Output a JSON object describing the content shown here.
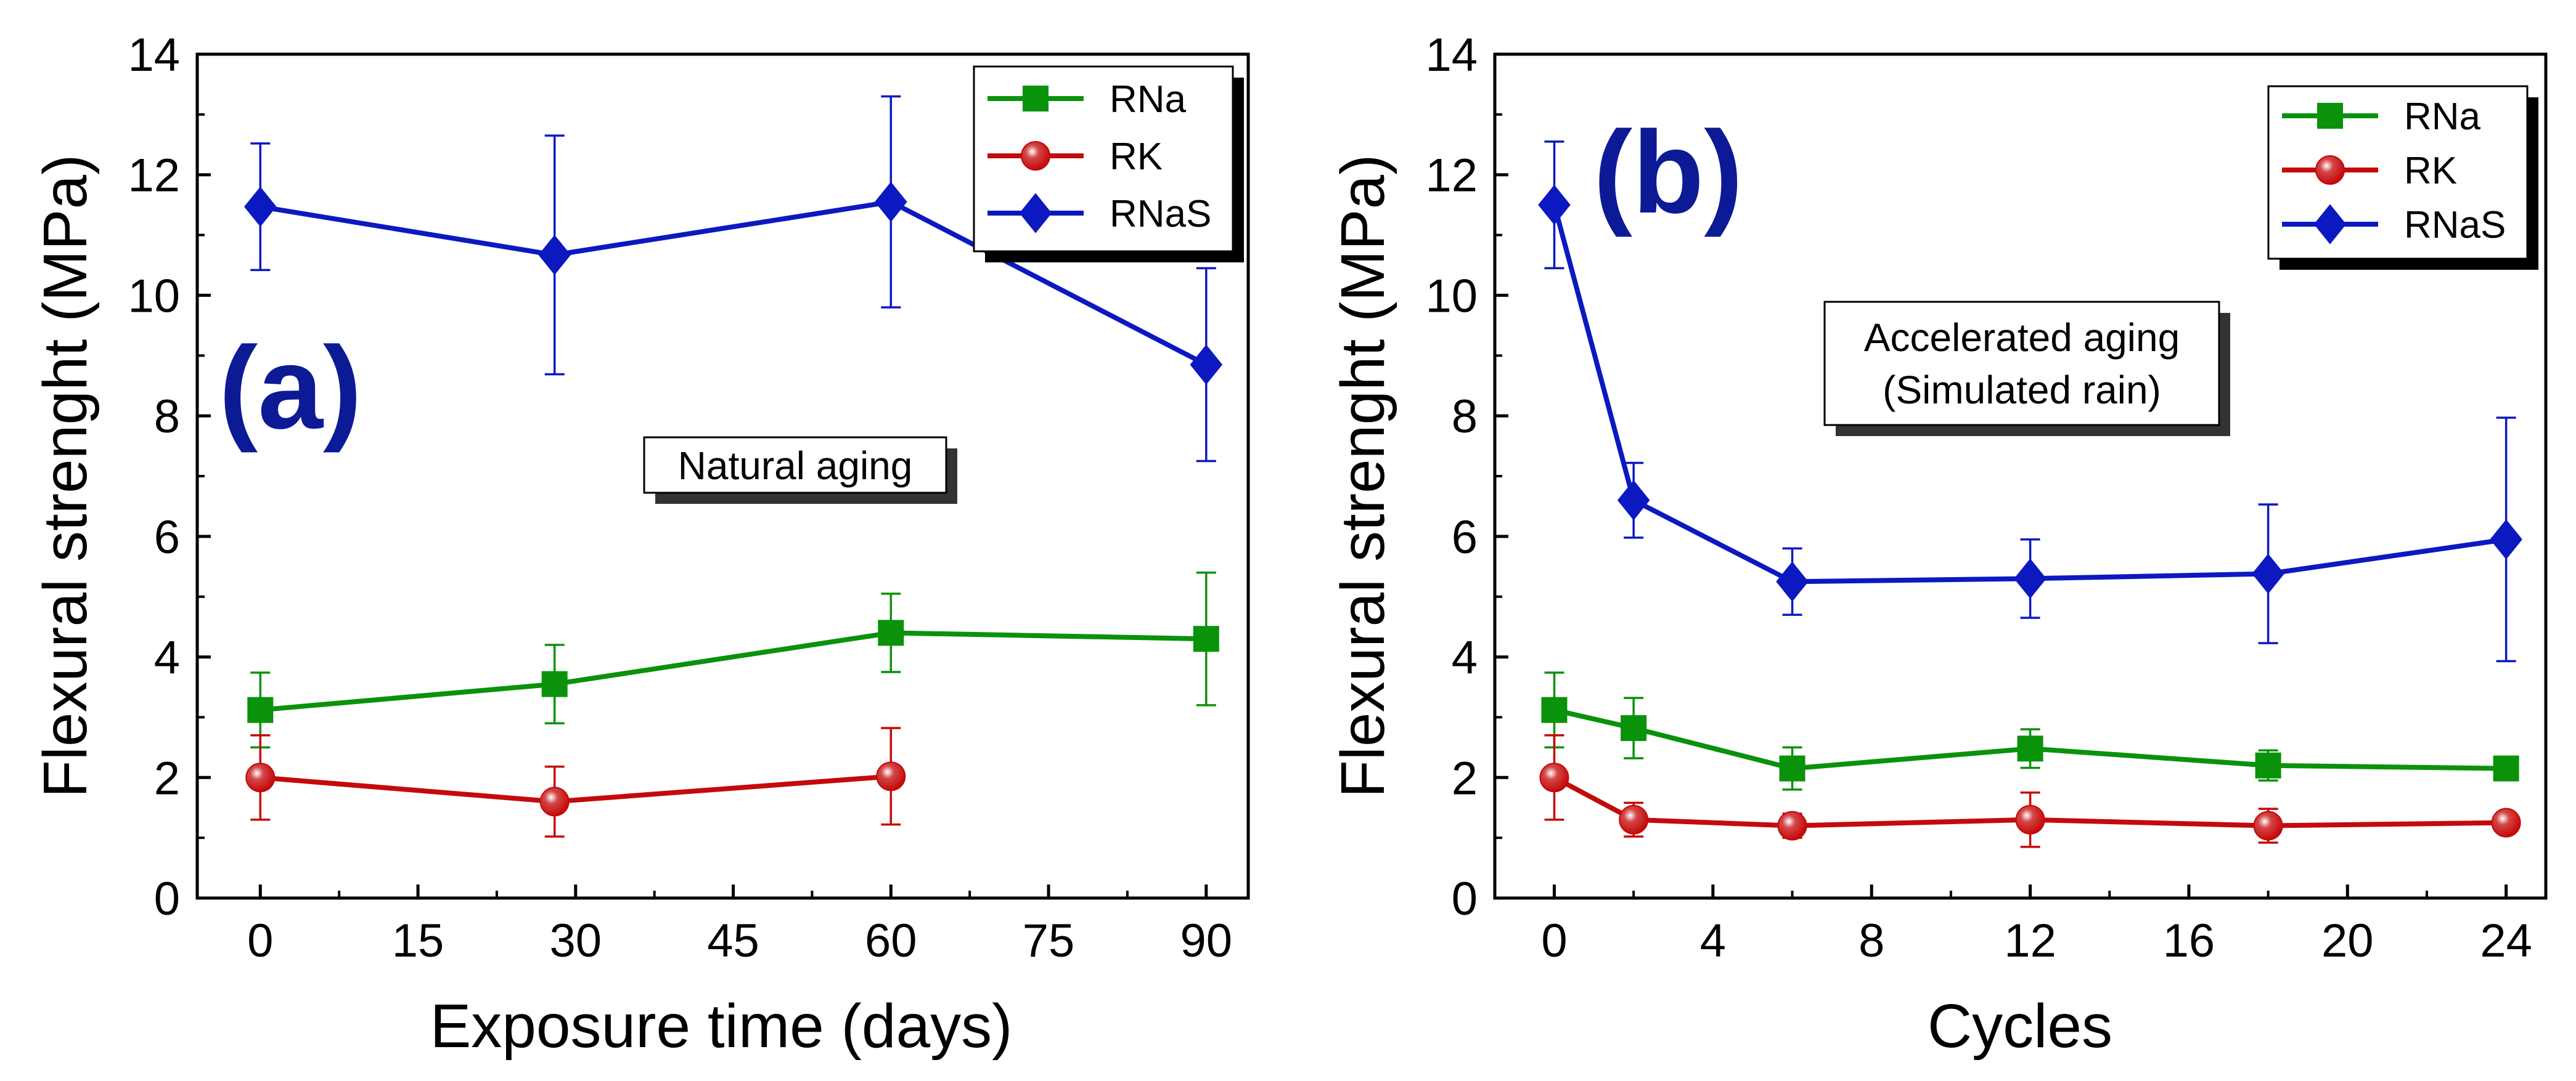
{
  "colors": {
    "RNa": "#0a920a",
    "RK": "#c40a0a",
    "RNaS": "#0c19c0",
    "panel_label": "#0c1a96"
  },
  "chart_data": [
    {
      "type": "line",
      "panel_label": "(a)",
      "annotation": "Natural aging",
      "xlabel": "Exposure time (days)",
      "ylabel": "Flexural strenght (MPa)",
      "xlim": [
        -6,
        94
      ],
      "ylim": [
        0,
        14
      ],
      "xticks": [
        0,
        15,
        30,
        45,
        60,
        75,
        90
      ],
      "yticks": [
        0,
        2,
        4,
        6,
        8,
        10,
        12,
        14
      ],
      "legend": {
        "position": "top-right",
        "entries": [
          "RNa",
          "RK",
          "RNaS"
        ]
      },
      "series": [
        {
          "name": "RNa",
          "marker": "square",
          "x": [
            0,
            28,
            60,
            90
          ],
          "y": [
            3.12,
            3.55,
            4.4,
            4.3
          ],
          "err": [
            0.62,
            0.65,
            0.65,
            1.1
          ]
        },
        {
          "name": "RK",
          "marker": "circle",
          "x": [
            0,
            28,
            60
          ],
          "y": [
            2.0,
            1.6,
            2.02
          ],
          "err": [
            0.7,
            0.58,
            0.8
          ]
        },
        {
          "name": "RNaS",
          "marker": "diamond",
          "x": [
            0,
            28,
            60,
            90
          ],
          "y": [
            11.47,
            10.67,
            11.55,
            8.85
          ],
          "err": [
            1.05,
            1.98,
            1.75,
            1.6
          ]
        }
      ]
    },
    {
      "type": "line",
      "panel_label": "(b)",
      "annotation": [
        "Accelerated aging",
        "(Simulated rain)"
      ],
      "xlabel": "Cycles",
      "ylabel": "Flexural strenght (MPa)",
      "xlim": [
        -1.5,
        25
      ],
      "ylim": [
        0,
        14
      ],
      "xticks": [
        0,
        4,
        8,
        12,
        16,
        20,
        24
      ],
      "yticks": [
        0,
        2,
        4,
        6,
        8,
        10,
        12,
        14
      ],
      "legend": {
        "position": "top-right",
        "entries": [
          "RNa",
          "RK",
          "RNaS"
        ]
      },
      "series": [
        {
          "name": "RNa",
          "marker": "square",
          "x": [
            0,
            2,
            6,
            12,
            18,
            24
          ],
          "y": [
            3.12,
            2.82,
            2.15,
            2.48,
            2.2,
            2.15
          ],
          "err": [
            0.62,
            0.5,
            0.35,
            0.32,
            0.25,
            0.18
          ]
        },
        {
          "name": "RK",
          "marker": "circle",
          "x": [
            0,
            2,
            6,
            12,
            18,
            24
          ],
          "y": [
            2.0,
            1.3,
            1.2,
            1.3,
            1.2,
            1.25
          ],
          "err": [
            0.7,
            0.28,
            0.2,
            0.45,
            0.28,
            0.12
          ]
        },
        {
          "name": "RNaS",
          "marker": "diamond",
          "x": [
            0,
            2,
            6,
            12,
            18,
            24
          ],
          "y": [
            11.5,
            6.6,
            5.25,
            5.3,
            5.38,
            5.95
          ],
          "err": [
            1.05,
            0.62,
            0.55,
            0.65,
            1.15,
            2.02
          ]
        }
      ]
    }
  ]
}
